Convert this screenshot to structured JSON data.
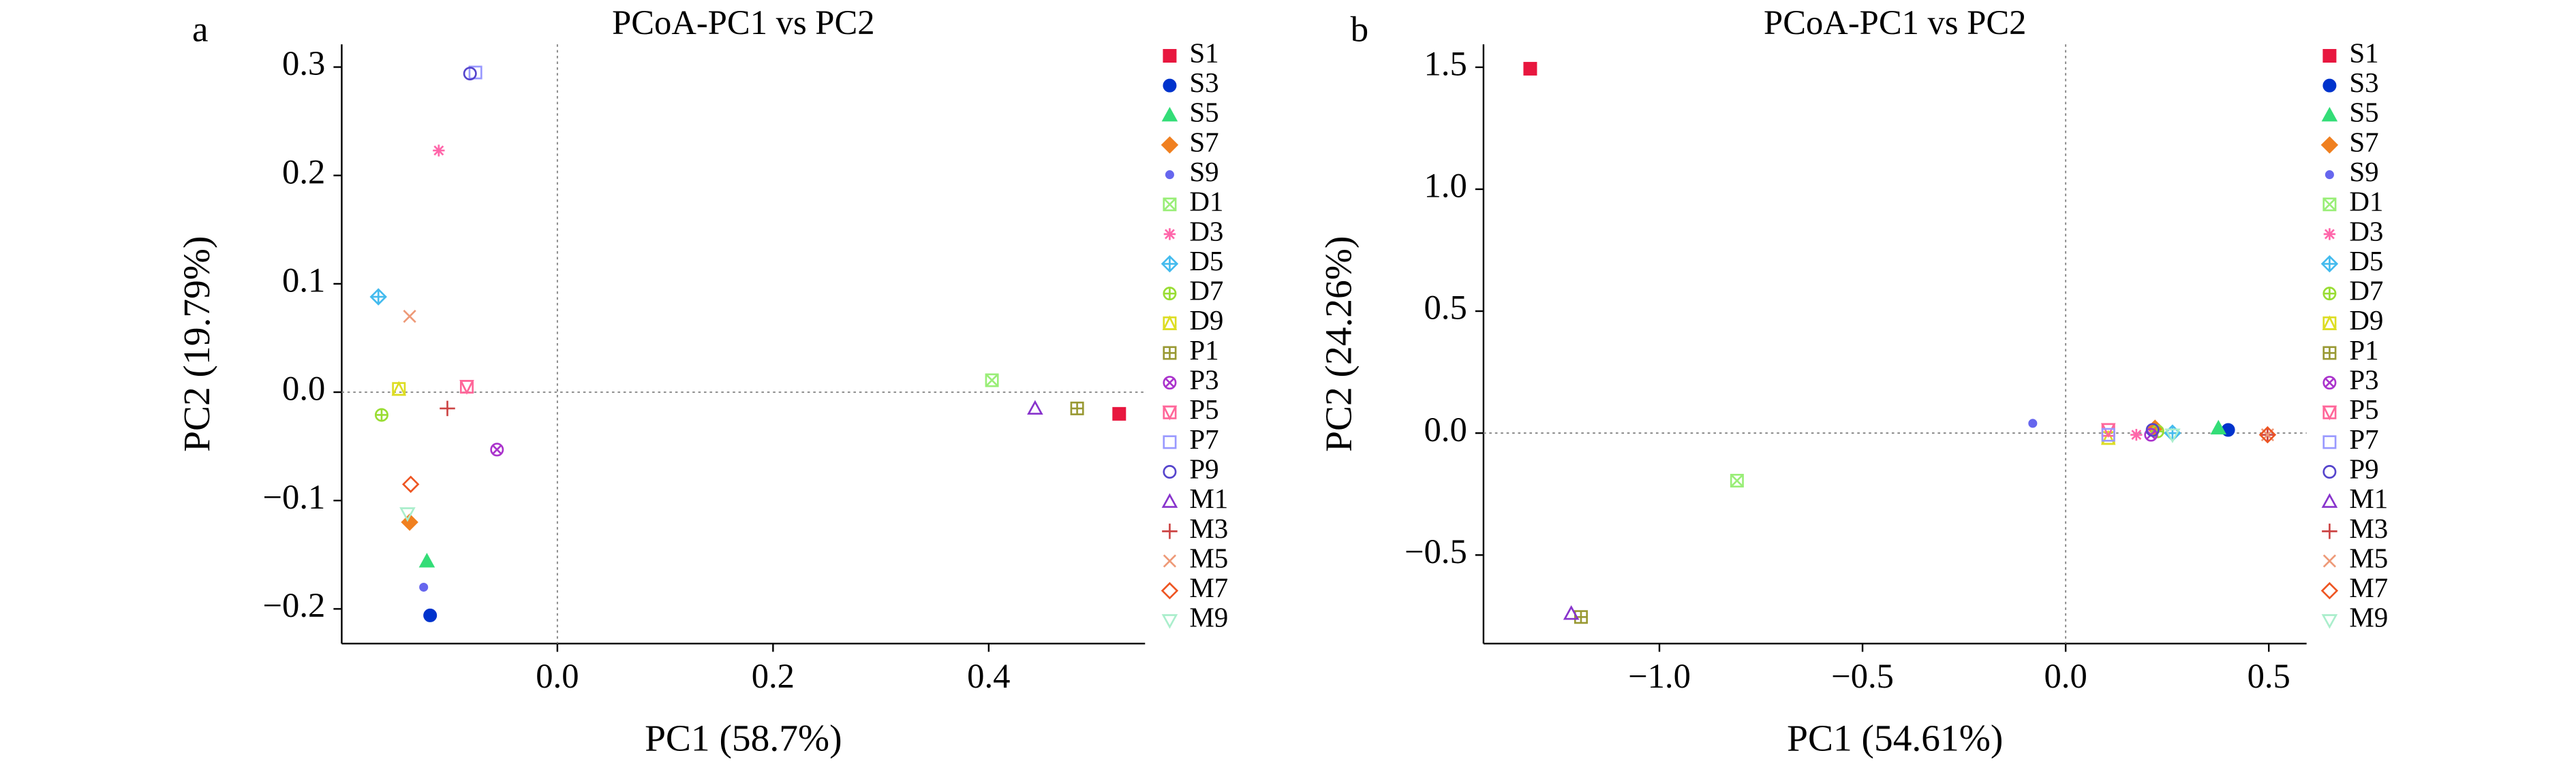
{
  "chart_data": [
    {
      "type": "scatter",
      "panel": "a",
      "title": "PCoA-PC1 vs PC2",
      "x_label": "PC1 (58.7%)",
      "y_label": "PC2 (19.79%)",
      "xlim": [
        -0.2,
        0.545
      ],
      "ylim": [
        -0.232,
        0.321
      ],
      "xticks": [
        {
          "value": 0,
          "label": "0.0"
        },
        0.2,
        0.4
      ],
      "yticks": [
        {
          "value": -0.2,
          "label": "−0.2"
        },
        {
          "value": -0.1,
          "label": "−0.1"
        },
        {
          "value": 0,
          "label": "0.0"
        },
        0.1,
        0.2,
        0.3
      ],
      "zero_lines": true,
      "legend": "right",
      "series": [
        {
          "name": "S1",
          "color": "#e8173f",
          "marker": "square-filled",
          "x": [
            0.521
          ],
          "y": [
            -0.02
          ]
        },
        {
          "name": "S3",
          "color": "#0033cc",
          "marker": "circle-filled",
          "x": [
            -0.118
          ],
          "y": [
            -0.206
          ]
        },
        {
          "name": "S5",
          "color": "#33dd77",
          "marker": "triangle-filled",
          "x": [
            -0.121
          ],
          "y": [
            -0.156
          ]
        },
        {
          "name": "S7",
          "color": "#f08020",
          "marker": "diamond-filled",
          "x": [
            -0.137
          ],
          "y": [
            -0.12
          ]
        },
        {
          "name": "S9",
          "color": "#6666ee",
          "marker": "dot",
          "x": [
            -0.124
          ],
          "y": [
            -0.18
          ]
        },
        {
          "name": "D1",
          "color": "#99ee77",
          "marker": "square-x",
          "x": [
            0.403
          ],
          "y": [
            0.011
          ]
        },
        {
          "name": "D3",
          "color": "#ff66aa",
          "marker": "asterisk",
          "x": [
            -0.11
          ],
          "y": [
            0.223
          ]
        },
        {
          "name": "D5",
          "color": "#44bbee",
          "marker": "diamond-plus",
          "x": [
            -0.166
          ],
          "y": [
            0.088
          ]
        },
        {
          "name": "D7",
          "color": "#99dd33",
          "marker": "circle-plus",
          "x": [
            -0.163
          ],
          "y": [
            -0.021
          ]
        },
        {
          "name": "D9",
          "color": "#dddd22",
          "marker": "square-triangle",
          "x": [
            -0.147
          ],
          "y": [
            0.003
          ]
        },
        {
          "name": "P1",
          "color": "#999933",
          "marker": "square-plus",
          "x": [
            0.482
          ],
          "y": [
            -0.015
          ]
        },
        {
          "name": "P3",
          "color": "#aa33cc",
          "marker": "circle-x",
          "x": [
            -0.056
          ],
          "y": [
            -0.053
          ]
        },
        {
          "name": "P5",
          "color": "#ff6699",
          "marker": "square-triangle-down",
          "x": [
            -0.084
          ],
          "y": [
            0.005
          ]
        },
        {
          "name": "P7",
          "color": "#9999ff",
          "marker": "square",
          "x": [
            -0.076
          ],
          "y": [
            0.295
          ]
        },
        {
          "name": "P9",
          "color": "#5544cc",
          "marker": "circle",
          "x": [
            -0.081
          ],
          "y": [
            0.294
          ]
        },
        {
          "name": "M1",
          "color": "#8833cc",
          "marker": "triangle",
          "x": [
            0.443
          ],
          "y": [
            -0.015
          ]
        },
        {
          "name": "M3",
          "color": "#cc4444",
          "marker": "plus",
          "x": [
            -0.102
          ],
          "y": [
            -0.015
          ]
        },
        {
          "name": "M5",
          "color": "#ee9977",
          "marker": "x",
          "x": [
            -0.137
          ],
          "y": [
            0.07
          ]
        },
        {
          "name": "M7",
          "color": "#ee5522",
          "marker": "diamond",
          "x": [
            -0.136
          ],
          "y": [
            -0.085
          ]
        },
        {
          "name": "M9",
          "color": "#aaeecc",
          "marker": "triangle-down",
          "x": [
            -0.139
          ],
          "y": [
            -0.112
          ]
        }
      ]
    },
    {
      "type": "scatter",
      "panel": "b",
      "title": "PCoA-PC1 vs PC2",
      "x_label": "PC1 (54.61%)",
      "y_label": "PC2 (24.26%)",
      "xlim": [
        -1.433,
        0.593
      ],
      "ylim": [
        -0.863,
        1.594
      ],
      "xticks": [
        {
          "value": -1,
          "label": "−1.0"
        },
        {
          "value": -0.5,
          "label": "−0.5"
        },
        {
          "value": 0,
          "label": "0.0"
        },
        0.5
      ],
      "yticks": [
        {
          "value": -0.5,
          "label": "−0.5"
        },
        {
          "value": 0,
          "label": "0.0"
        },
        0.5,
        {
          "value": 1,
          "label": "1.0"
        },
        1.5
      ],
      "zero_lines": true,
      "legend": "right",
      "series": [
        {
          "name": "S1",
          "color": "#e8173f",
          "marker": "square-filled",
          "x": [
            -1.318
          ],
          "y": [
            1.494
          ]
        },
        {
          "name": "S3",
          "color": "#0033cc",
          "marker": "circle-filled",
          "x": [
            0.4
          ],
          "y": [
            0.013
          ]
        },
        {
          "name": "S5",
          "color": "#33dd77",
          "marker": "triangle-filled",
          "x": [
            0.376
          ],
          "y": [
            0.02
          ]
        },
        {
          "name": "S7",
          "color": "#f08020",
          "marker": "diamond-filled",
          "x": [
            0.22
          ],
          "y": [
            0.02
          ]
        },
        {
          "name": "S9",
          "color": "#6666ee",
          "marker": "dot",
          "x": [
            -0.081
          ],
          "y": [
            0.04
          ]
        },
        {
          "name": "D1",
          "color": "#99ee77",
          "marker": "square-x",
          "x": [
            -0.809
          ],
          "y": [
            -0.195
          ]
        },
        {
          "name": "D3",
          "color": "#ff66aa",
          "marker": "asterisk",
          "x": [
            0.174
          ],
          "y": [
            -0.007
          ]
        },
        {
          "name": "D5",
          "color": "#44bbee",
          "marker": "diamond-plus",
          "x": [
            0.263
          ],
          "y": [
            0
          ]
        },
        {
          "name": "D7",
          "color": "#99dd33",
          "marker": "circle-plus",
          "x": [
            0.226
          ],
          "y": [
            0.007
          ]
        },
        {
          "name": "D9",
          "color": "#dddd22",
          "marker": "square-triangle",
          "x": [
            0.105
          ],
          "y": [
            -0.02
          ]
        },
        {
          "name": "P1",
          "color": "#999933",
          "marker": "square-plus",
          "x": [
            -1.193
          ],
          "y": [
            -0.754
          ]
        },
        {
          "name": "P3",
          "color": "#aa33cc",
          "marker": "circle-x",
          "x": [
            0.21
          ],
          "y": [
            -0.007
          ]
        },
        {
          "name": "P5",
          "color": "#ff6699",
          "marker": "square-triangle-down",
          "x": [
            0.105
          ],
          "y": [
            0.013
          ]
        },
        {
          "name": "P7",
          "color": "#9999ff",
          "marker": "square",
          "x": [
            0.105
          ],
          "y": [
            -0.007
          ]
        },
        {
          "name": "P9",
          "color": "#5544cc",
          "marker": "circle",
          "x": [
            0.214
          ],
          "y": [
            0.013
          ]
        },
        {
          "name": "M1",
          "color": "#8833cc",
          "marker": "triangle",
          "x": [
            -1.217
          ],
          "y": [
            -0.74
          ]
        },
        {
          "name": "M3",
          "color": "#cc4444",
          "marker": "plus",
          "x": [
            0.497
          ],
          "y": [
            -0.007
          ]
        },
        {
          "name": "M5",
          "color": "#ee9977",
          "marker": "x",
          "x": [
            0.497
          ],
          "y": [
            -0.007
          ]
        },
        {
          "name": "M7",
          "color": "#ee5522",
          "marker": "diamond",
          "x": [
            0.497
          ],
          "y": [
            -0.007
          ]
        },
        {
          "name": "M9",
          "color": "#aaeecc",
          "marker": "triangle-down",
          "x": [
            0.263
          ],
          "y": [
            -0.007
          ]
        }
      ]
    }
  ]
}
